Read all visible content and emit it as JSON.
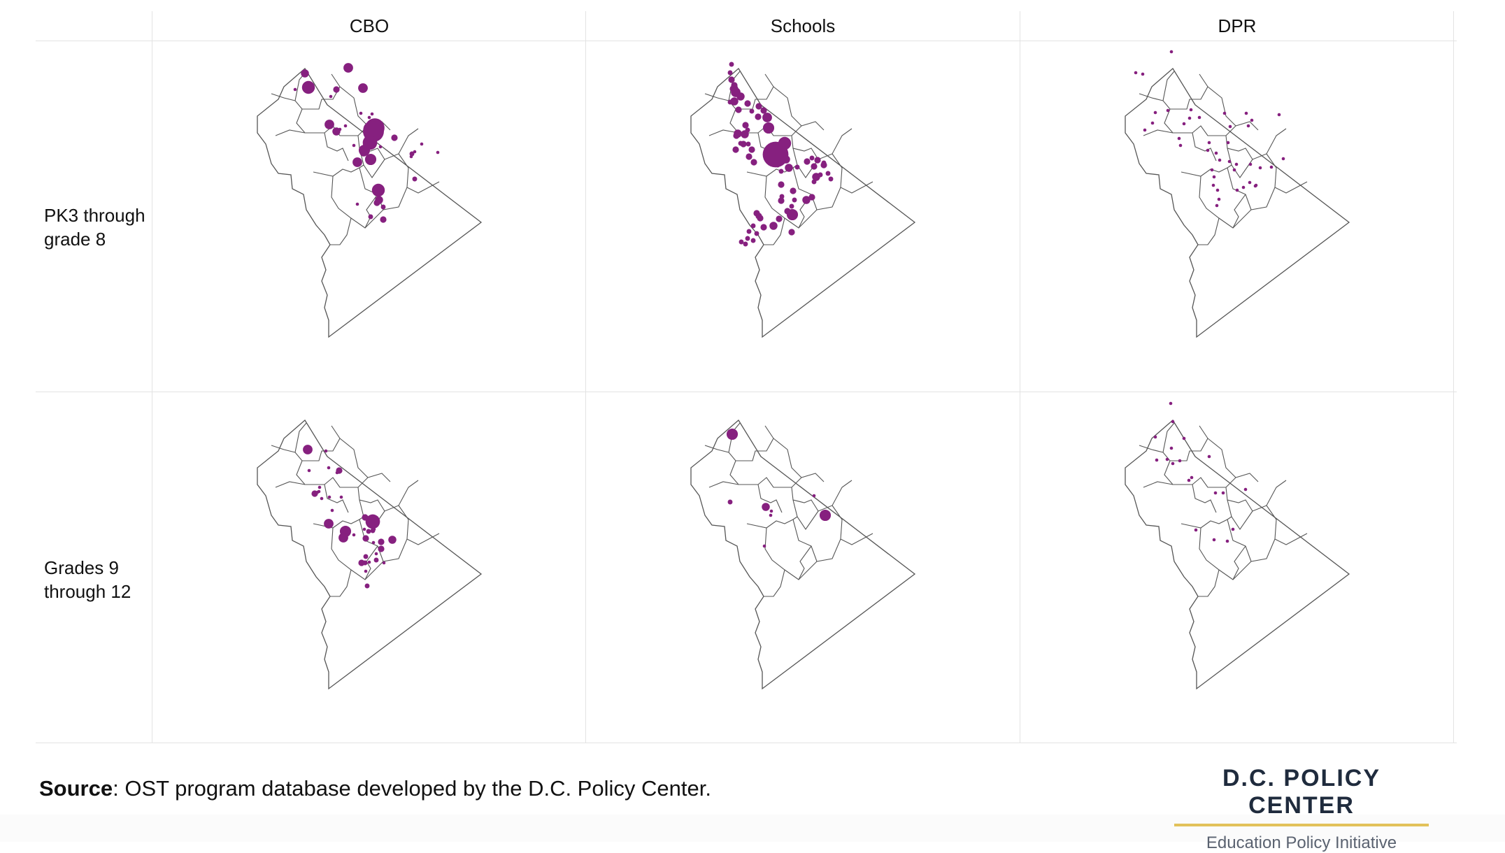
{
  "columns": [
    "CBO",
    "Schools",
    "DPR"
  ],
  "rows": [
    "PK3 through grade 8",
    "Grades 9 through 12"
  ],
  "row_lines": [
    [
      "PK3 through",
      "grade 8"
    ],
    [
      "Grades 9",
      "through 12"
    ]
  ],
  "source": {
    "label": "Source",
    "text": ": OST program database developed by the D.C. Policy Center."
  },
  "brand": {
    "title": "D.C. POLICY CENTER",
    "subtitle": "Education Policy Initiative"
  },
  "colors": {
    "dot": "#86207f",
    "outline": "#555555",
    "grid": "#e3e3e3",
    "brand_underline": "#e2c25a"
  },
  "map_data": {
    "type": "bubble-map",
    "region": "Washington, D.C. wards",
    "panels": [
      {
        "row": "PK3 through grade 8",
        "column": "CBO",
        "program_sizes": [
          5,
          8,
          6,
          4,
          2,
          2,
          6,
          2,
          2,
          2,
          6,
          5,
          2,
          2,
          10,
          12,
          13,
          9,
          7,
          2,
          2,
          2,
          2,
          6,
          7,
          5,
          4,
          3,
          2,
          2,
          2,
          2,
          8,
          4,
          3,
          3,
          5,
          4,
          2,
          3
        ]
      },
      {
        "row": "PK3 through grade 8",
        "column": "Schools",
        "program_sizes": [
          3,
          3,
          4,
          4,
          3,
          4,
          6,
          5,
          3,
          5,
          4,
          4,
          3,
          4,
          4,
          6,
          4,
          7,
          4,
          3,
          5,
          5,
          4,
          4,
          3,
          4,
          3,
          4,
          4,
          4,
          8,
          7,
          3,
          16,
          7,
          5,
          3,
          5,
          4,
          4,
          3,
          4,
          3,
          4,
          3,
          5,
          3,
          3,
          3,
          4,
          4,
          3,
          4,
          5,
          3,
          3,
          4,
          7,
          4,
          4,
          5,
          4,
          4,
          4,
          4,
          3,
          3,
          4,
          3,
          3,
          3,
          3,
          3,
          3,
          3
        ]
      },
      {
        "row": "PK3 through grade 8",
        "column": "DPR",
        "program_sizes": [
          2,
          2,
          2,
          2,
          2,
          2,
          2,
          2,
          2,
          2,
          2,
          2,
          2,
          2,
          2,
          2,
          2,
          2,
          2,
          2,
          2,
          2,
          2,
          2,
          2,
          2,
          2,
          2,
          2,
          2,
          2,
          2,
          2,
          2,
          2,
          2,
          2,
          2,
          2,
          2,
          2,
          2
        ]
      },
      {
        "row": "Grades 9 through 12",
        "column": "CBO",
        "program_sizes": [
          2,
          6,
          2,
          2,
          2,
          4,
          2,
          4,
          2,
          2,
          2,
          2,
          2,
          2,
          2,
          6,
          2,
          9,
          7,
          6,
          4,
          3,
          2,
          2,
          4,
          2,
          2,
          3,
          3,
          2,
          3,
          2,
          3,
          2,
          5,
          4,
          4,
          4,
          3,
          2,
          3
        ]
      },
      {
        "row": "Grades 9 through 12",
        "column": "Schools",
        "program_sizes": [
          7,
          3,
          5,
          2,
          2,
          2,
          2,
          7
        ]
      },
      {
        "row": "Grades 9 through 12",
        "column": "DPR",
        "program_sizes": [
          2,
          2,
          2,
          2,
          2,
          2,
          2,
          2,
          2,
          2,
          2,
          2,
          2,
          2,
          2,
          2,
          2,
          2,
          2
        ]
      }
    ]
  }
}
